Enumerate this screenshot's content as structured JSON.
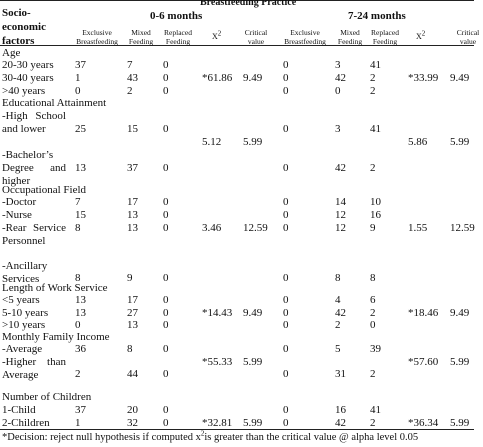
{
  "header": {
    "title": "Breastfeeding Practice",
    "row_header": "Socio-economic factors",
    "periods": [
      "0-6 months",
      "7-24 months"
    ],
    "columns": [
      {
        "text": "Exclusive Breastfeeding"
      },
      {
        "text": "Mixed Feeding"
      },
      {
        "text": "Replaced Feeding"
      },
      {
        "base": "X",
        "sup": "2"
      },
      {
        "text": "Critical value"
      },
      {
        "text": "Exclusive Breastfeeding"
      },
      {
        "text": "Mixed Feeding"
      },
      {
        "text": "Replaced Feeding"
      },
      {
        "base": "X",
        "sup": "2"
      },
      {
        "text": "Critical value"
      }
    ]
  },
  "sections": [
    {
      "title": "Age",
      "rows": [
        {
          "label": "20-30 years",
          "cells": [
            37,
            7,
            0,
            null,
            null,
            0,
            3,
            41,
            null,
            null
          ]
        },
        {
          "label": "30-40 years",
          "cells": [
            1,
            43,
            0,
            "*61.86",
            9.49,
            0,
            42,
            2,
            "*33.99",
            9.49
          ]
        },
        {
          "label": ">40 years",
          "cells": [
            0,
            2,
            0,
            null,
            null,
            0,
            0,
            2,
            null,
            null
          ]
        }
      ]
    },
    {
      "title": "Educational Attainment",
      "rows": [
        {
          "label": "-High School and lower",
          "cells": [
            25,
            15,
            0,
            5.12,
            5.99,
            0,
            3,
            41,
            5.86,
            5.99
          ]
        },
        {
          "label": "-Bachelor’s Degree and higher",
          "cells": [
            13,
            37,
            0,
            null,
            null,
            0,
            42,
            2,
            null,
            null
          ]
        }
      ]
    },
    {
      "title": "Occupational Field",
      "rows": [
        {
          "label": "-Doctor",
          "cells": [
            7,
            17,
            0,
            null,
            null,
            0,
            14,
            10,
            null,
            null
          ]
        },
        {
          "label": "-Nurse",
          "cells": [
            15,
            13,
            0,
            null,
            null,
            0,
            12,
            16,
            null,
            null
          ]
        },
        {
          "label": "-Rear Service Personnel",
          "cells": [
            8,
            13,
            0,
            3.46,
            12.59,
            0,
            12,
            9,
            1.55,
            12.59
          ]
        },
        {
          "label": "-Ancillary Services",
          "cells": [
            8,
            9,
            0,
            null,
            null,
            0,
            8,
            8,
            null,
            null
          ]
        }
      ]
    },
    {
      "title": "Length of Work Service",
      "rows": [
        {
          "label": "<5 years",
          "cells": [
            13,
            17,
            0,
            null,
            null,
            0,
            4,
            6,
            null,
            null
          ]
        },
        {
          "label": "5-10 years",
          "cells": [
            13,
            27,
            0,
            "*14.43",
            9.49,
            0,
            42,
            2,
            "*18.46",
            9.49
          ]
        },
        {
          "label": ">10 years",
          "cells": [
            0,
            13,
            0,
            null,
            null,
            0,
            2,
            0,
            null,
            null
          ]
        }
      ]
    },
    {
      "title": "Monthly Family Income",
      "rows": [
        {
          "label": "-Average",
          "cells": [
            36,
            8,
            0,
            null,
            null,
            0,
            5,
            39,
            null,
            null
          ]
        },
        {
          "label": "-Higher than Average",
          "cells": [
            2,
            44,
            0,
            "*55.33",
            5.99,
            0,
            31,
            2,
            "*57.60",
            5.99
          ]
        }
      ]
    },
    {
      "title": "Number of Children",
      "rows": [
        {
          "label": "1-Child",
          "cells": [
            37,
            20,
            0,
            null,
            null,
            0,
            16,
            41,
            null,
            null
          ]
        },
        {
          "label": "2-Children",
          "cells": [
            1,
            32,
            0,
            "*32.81",
            5.99,
            0,
            42,
            2,
            "*36.34",
            5.99
          ]
        }
      ]
    }
  ],
  "footnote": {
    "before": "*Decision: reject null hypothesis if computed x",
    "sup": "2",
    "after": "is greater than the critical value @ alpha level 0.05"
  }
}
